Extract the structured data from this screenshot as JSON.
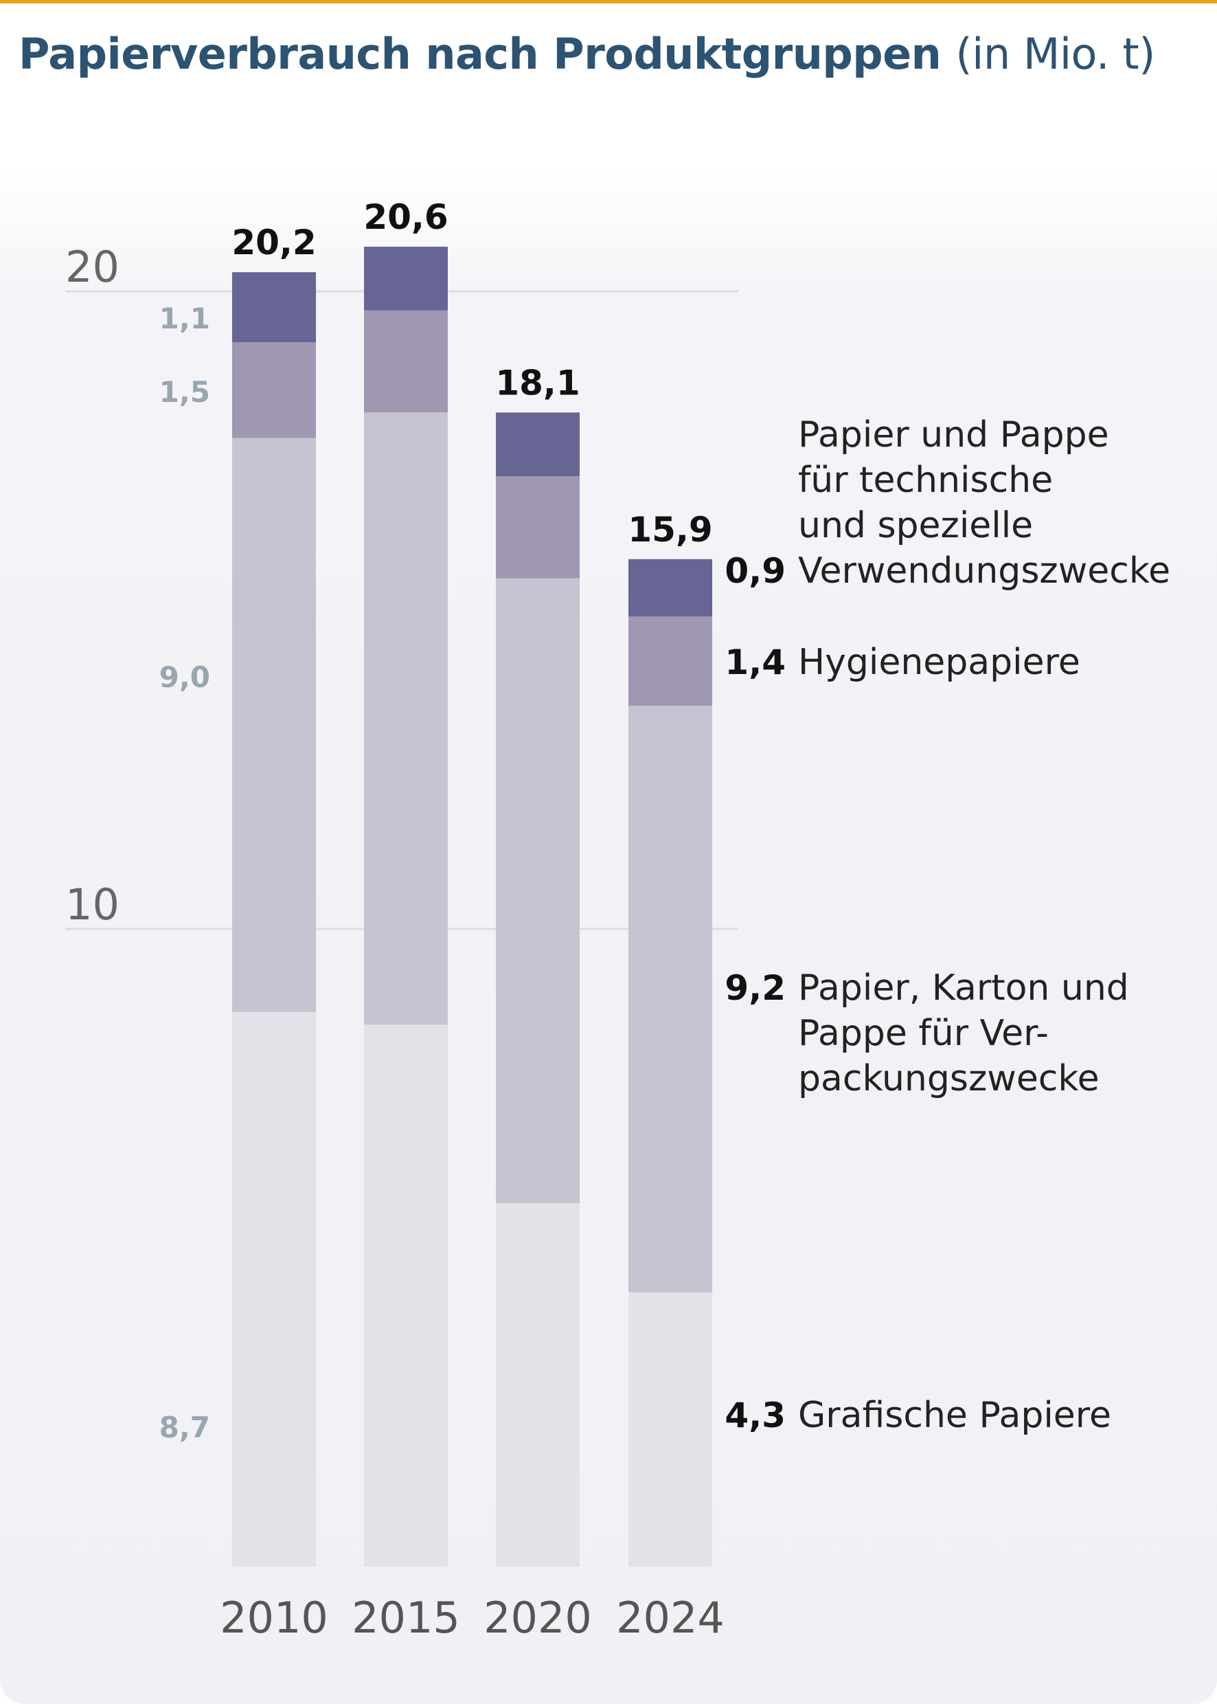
{
  "title": "Papierverbrauch nach Produktgruppen",
  "unit": "(in Mio. t)",
  "colors": {
    "accent": "#e8a317",
    "title": "#2d5373",
    "grafisch": "#e3e2e8",
    "verpackung": "#c6c4d0",
    "hygiene": "#a097b0",
    "technisch": "#676593",
    "year_label": "#555555",
    "inner_label": "#97a6b0",
    "grid": "#dcdce0"
  },
  "chart_data": {
    "type": "bar",
    "stacked": true,
    "title": "Papierverbrauch nach Produktgruppen",
    "subtitle": "(in Mio. t)",
    "categories": [
      "2010",
      "2015",
      "2020",
      "2024"
    ],
    "ylim": [
      0,
      21
    ],
    "yticks": [
      10,
      20
    ],
    "ytick_labels": [
      "10",
      "20"
    ],
    "grid": true,
    "series": [
      {
        "name": "Grafische Papiere",
        "key": "grafisch",
        "values": [
          8.7,
          8.5,
          5.7,
          4.3
        ]
      },
      {
        "name": "Papier, Karton und Pappe für Verpackungszwecke",
        "key": "verpackung",
        "values": [
          9.0,
          9.6,
          9.8,
          9.2
        ]
      },
      {
        "name": "Hygienepapiere",
        "key": "hygiene",
        "values": [
          1.5,
          1.6,
          1.6,
          1.4
        ]
      },
      {
        "name": "Papier und Pappe für technische und spezielle Verwendungszwecke",
        "key": "technisch",
        "values": [
          1.1,
          1.0,
          1.0,
          0.9
        ]
      }
    ],
    "totals": [
      "20,2",
      "20,6",
      "18,1",
      "15,9"
    ],
    "inner_labels_2010": [
      "8,7",
      "9,0",
      "1,5",
      "1,1"
    ],
    "legend": [
      {
        "value": "0,9",
        "lines": [
          "Papier und Pappe",
          "für technische",
          "und spezielle",
          "Verwendungszwecke"
        ]
      },
      {
        "value": "1,4",
        "lines": [
          "Hygienepapiere"
        ]
      },
      {
        "value": "9,2",
        "lines": [
          "Papier, Karton und",
          "Pappe für Ver-",
          "packungszwecke"
        ]
      },
      {
        "value": "4,3",
        "lines": [
          "Grafische Papiere"
        ]
      }
    ]
  }
}
